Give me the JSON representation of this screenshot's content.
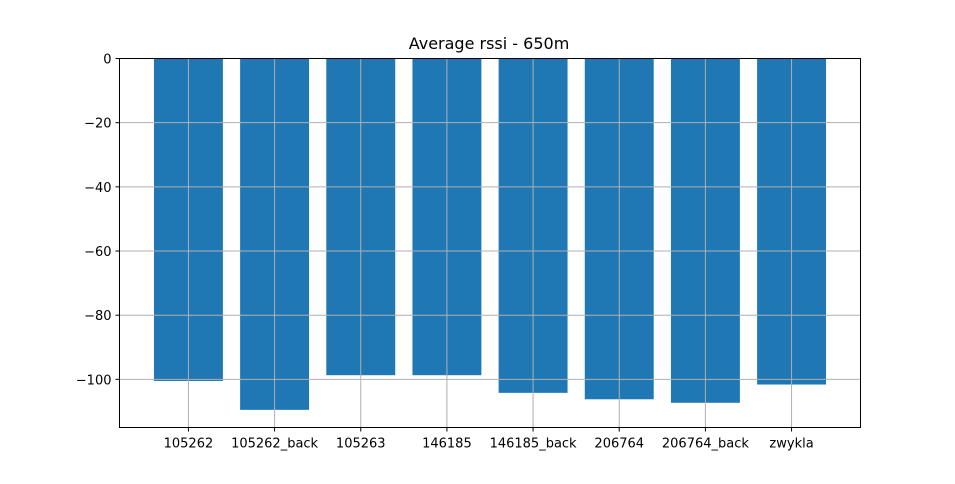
{
  "chart_data": {
    "type": "bar",
    "title": "Average rssi - 650m",
    "xlabel": "",
    "ylabel": "",
    "categories": [
      "105262",
      "105262_back",
      "105263",
      "146185",
      "146185_back",
      "206764",
      "206764_back",
      "zwykla"
    ],
    "values": [
      -100.5,
      -109.5,
      -98.7,
      -98.7,
      -104.2,
      -106.2,
      -107.3,
      -101.6
    ],
    "ylim": [
      -115,
      0
    ],
    "yticks": [
      0,
      -20,
      -40,
      -60,
      -80,
      -100
    ],
    "ytick_labels": [
      "0",
      "−20",
      "−40",
      "−60",
      "−80",
      "−100"
    ],
    "grid": true,
    "bar_color": "#1f77b4",
    "grid_color": "#b0b0b0"
  }
}
